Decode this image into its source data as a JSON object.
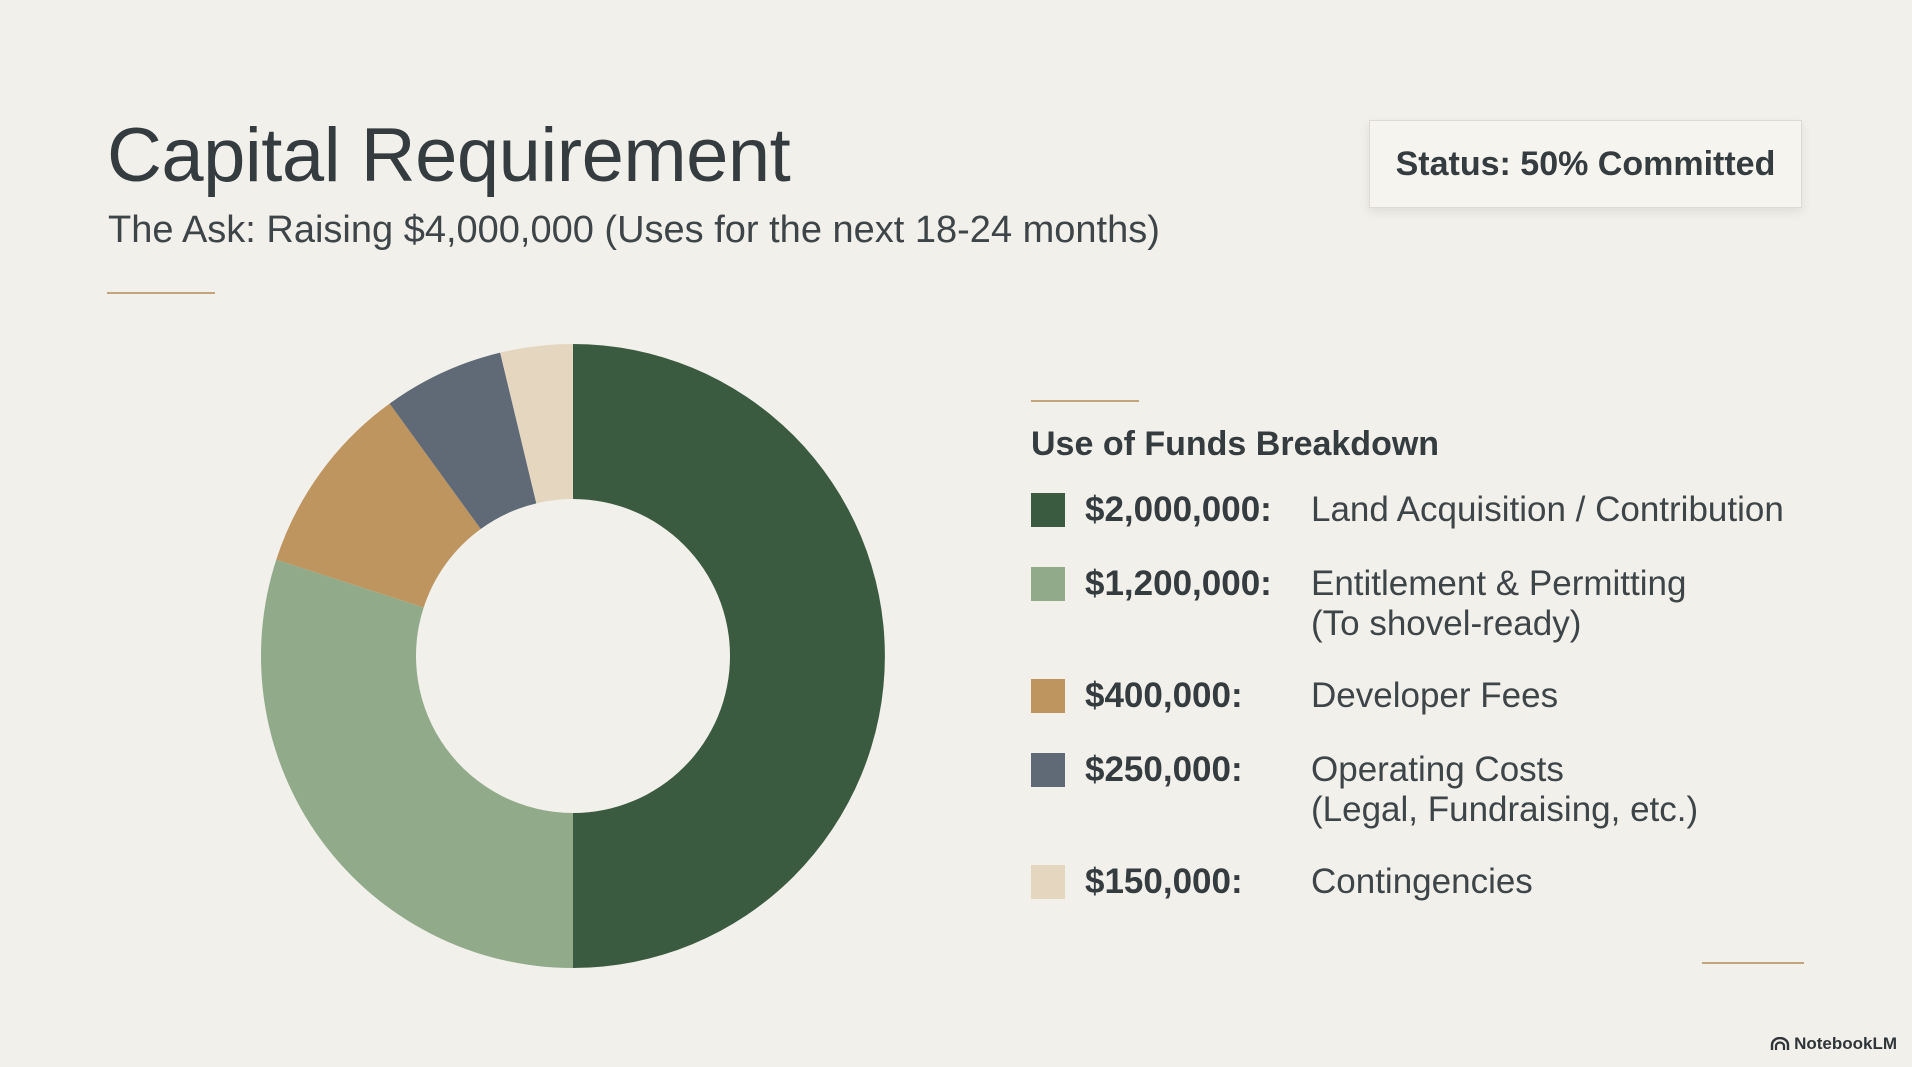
{
  "title": "Capital Requirement",
  "subtitle": "The Ask: Raising $4,000,000 (Uses for the next 18-24 months)",
  "status": "Status: 50% Committed",
  "brand": "NotebookLM",
  "chart_data": {
    "type": "pie",
    "title": "Use of Funds Breakdown",
    "categories": [
      "Land Acquisition / Contribution",
      "Entitlement & Permitting (To shovel-ready)",
      "Developer Fees",
      "Operating Costs (Legal, Fundraising, etc.)",
      "Contingencies"
    ],
    "values": [
      2000000,
      1200000,
      400000,
      250000,
      150000
    ],
    "colors": [
      "#3b5b40",
      "#91ab8a",
      "#bf955f",
      "#5f6a76",
      "#e4d6bf"
    ]
  },
  "legend": {
    "items": [
      {
        "amount": "$2,000,000:",
        "lines": [
          "Land Acquisition / Contribution"
        ]
      },
      {
        "amount": "$1,200,000:",
        "lines": [
          "Entitlement & Permitting",
          "(To shovel-ready)"
        ]
      },
      {
        "amount": "$400,000:",
        "lines": [
          "Developer Fees"
        ]
      },
      {
        "amount": "$250,000:",
        "lines": [
          "Operating Costs",
          "(Legal, Fundraising, etc.)"
        ]
      },
      {
        "amount": "$150,000:",
        "lines": [
          "Contingencies"
        ]
      }
    ]
  }
}
